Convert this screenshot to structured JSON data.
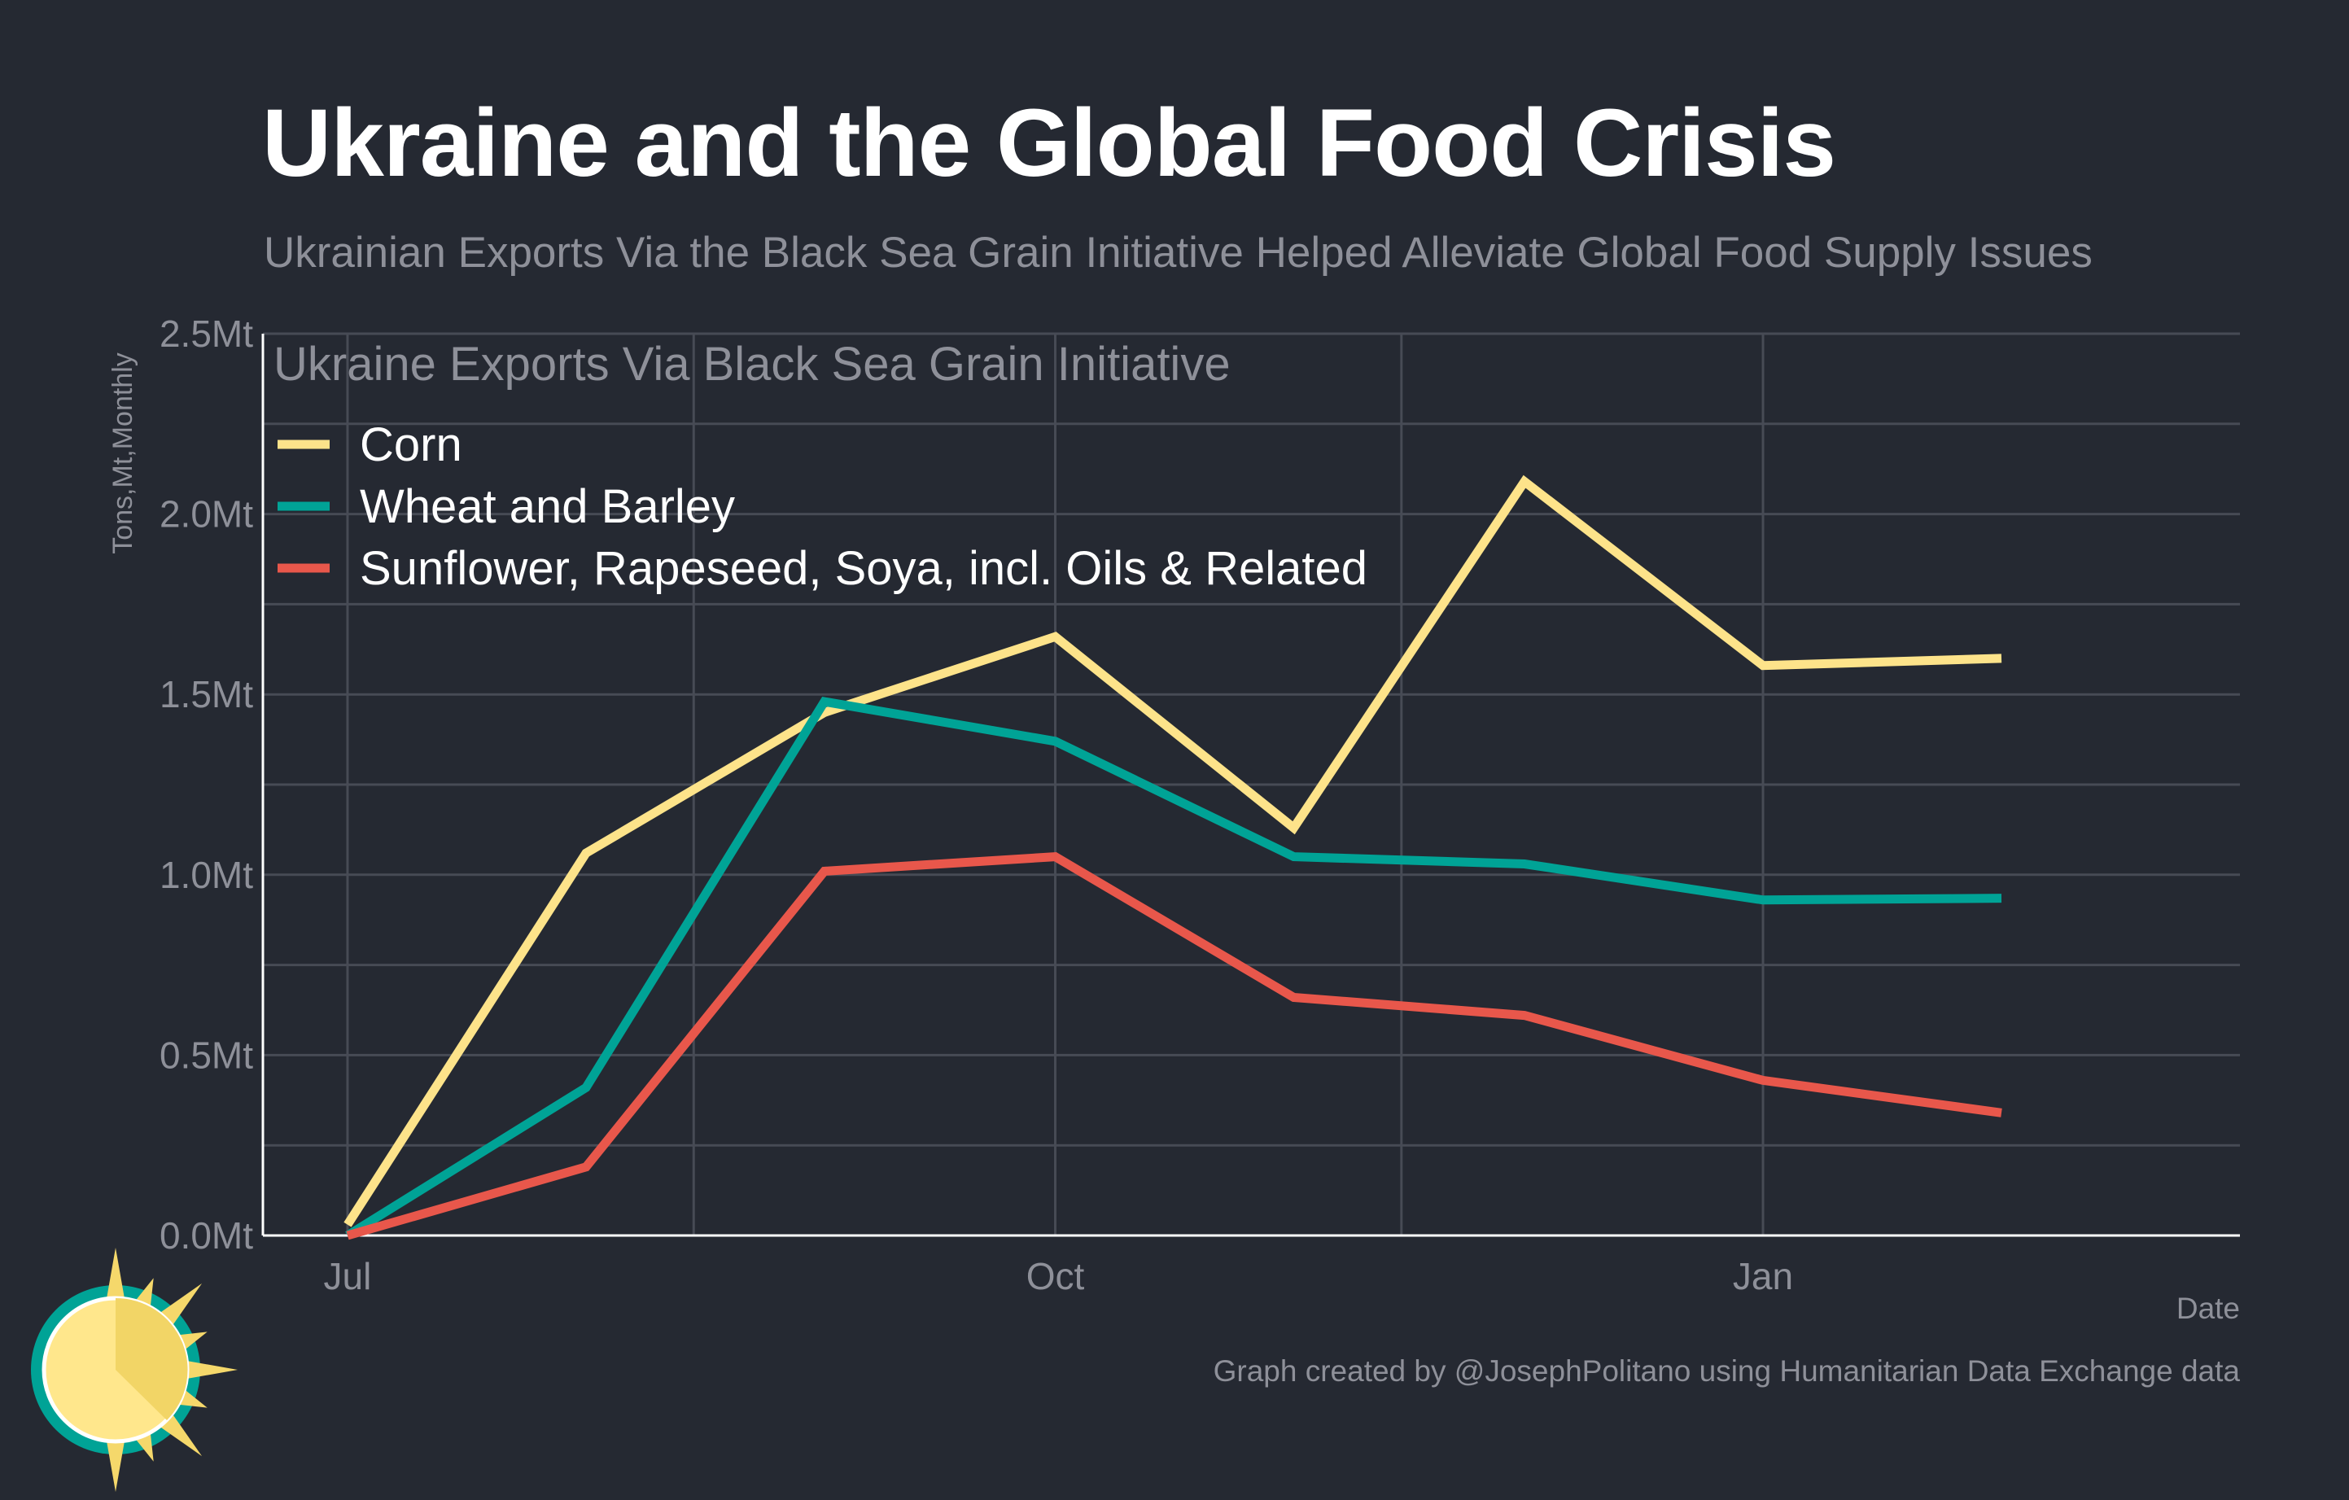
{
  "header": {
    "title": "Ukraine and the Global Food Crisis",
    "subtitle": "Ukrainian Exports Via the Black Sea Grain Initiative Helped Alleviate Global Food Supply Issues"
  },
  "caption": "Graph created by @JosephPolitano using Humanitarian Data Exchange data",
  "logo": {
    "icon": "sun-logo-icon"
  },
  "colors": {
    "background": "#252932",
    "grid": "#474b55",
    "axis": "#ffffff",
    "muted_text": "#8e9099"
  },
  "chart_data": {
    "type": "line",
    "title": "",
    "legend_title": "Ukraine Exports Via Black Sea Grain Initiative",
    "legend_position": "top-left",
    "ylabel": "Tons,Mt,Monthly",
    "xlabel": "Date",
    "ylim": [
      0,
      2.5
    ],
    "y_ticks": [
      {
        "value": 0.0,
        "label": "0.0Mt"
      },
      {
        "value": 0.5,
        "label": "0.5Mt"
      },
      {
        "value": 1.0,
        "label": "1.0Mt"
      },
      {
        "value": 1.5,
        "label": "1.5Mt"
      },
      {
        "value": 2.0,
        "label": "2.0Mt"
      },
      {
        "value": 2.5,
        "label": "2.5Mt"
      }
    ],
    "x_ticks": [
      {
        "value": "2022-07-01",
        "label": "Jul"
      },
      {
        "value": "2022-10-01",
        "label": "Oct"
      },
      {
        "value": "2023-01-01",
        "label": "Jan"
      }
    ],
    "x_gridlines": [
      "2022-07-01",
      "2022-08-15",
      "2022-10-01",
      "2022-11-15",
      "2023-01-01"
    ],
    "xlim": [
      "2022-06-20",
      "2023-03-04"
    ],
    "grid": true,
    "x": [
      "2022-07-01",
      "2022-08-01",
      "2022-09-01",
      "2022-10-01",
      "2022-11-01",
      "2022-12-01",
      "2023-01-01",
      "2023-02-01"
    ],
    "series": [
      {
        "name": "Corn",
        "color": "#fde38a",
        "values": [
          0.03,
          1.06,
          1.45,
          1.66,
          1.13,
          2.09,
          1.58,
          1.6
        ]
      },
      {
        "name": "Wheat and Barley",
        "color": "#00a396",
        "values": [
          0.0,
          0.41,
          1.48,
          1.37,
          1.05,
          1.03,
          0.93,
          0.935
        ]
      },
      {
        "name": "Sunflower, Rapeseed, Soya, incl. Oils & Related",
        "color": "#e8574b",
        "values": [
          0.0,
          0.19,
          1.01,
          1.05,
          0.66,
          0.61,
          0.43,
          0.34
        ]
      }
    ]
  }
}
